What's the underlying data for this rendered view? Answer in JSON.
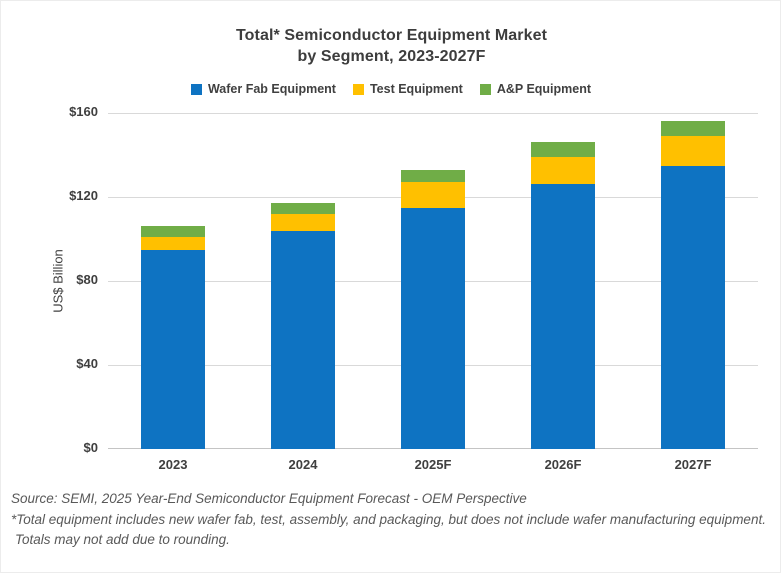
{
  "title": {
    "line1": "Total* Semiconductor Equipment Market",
    "line2": "by Segment, 2023-2027F"
  },
  "y_axis": {
    "label": "US$ Billion",
    "ticks": [
      "$160",
      "$120",
      "$80",
      "$40",
      "$0"
    ]
  },
  "footer": {
    "line1": "Source: SEMI, 2025 Year-End Semiconductor Equipment Forecast - OEM Perspective",
    "line2": "*Total equipment includes new wafer fab, test, assembly, and packaging, but does not include wafer manufacturing equipment.",
    "line3": "Totals may not add due to rounding."
  },
  "colors": {
    "wafer_fab": "#0e73c2",
    "test": "#ffc000",
    "ap": "#70ad47",
    "gridline": "#d9d9d9",
    "text": "#3f3f3f"
  },
  "chart_data": {
    "type": "bar",
    "stacked": true,
    "title": "Total* Semiconductor Equipment Market by Segment, 2023-2027F",
    "categories": [
      "2023",
      "2024",
      "2025F",
      "2026F",
      "2027F"
    ],
    "series": [
      {
        "name": "Wafer Fab Equipment",
        "color": "#0e73c2",
        "values": [
          95,
          104,
          115,
          126,
          135
        ]
      },
      {
        "name": "Test Equipment",
        "color": "#ffc000",
        "values": [
          6,
          8,
          12,
          13,
          14
        ]
      },
      {
        "name": "A&P Equipment",
        "color": "#70ad47",
        "values": [
          5,
          5,
          6,
          7,
          7
        ]
      }
    ],
    "totals": [
      106,
      117,
      133,
      146,
      156
    ],
    "xlabel": "",
    "ylabel": "US$ Billion",
    "ylim": [
      0,
      160
    ],
    "ytick_step": 40,
    "grid": true,
    "legend_position": "top"
  }
}
